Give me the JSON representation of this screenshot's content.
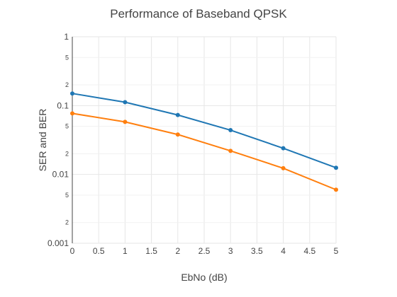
{
  "chart_data": {
    "type": "line",
    "title": "Performance of Baseband QPSK",
    "xlabel": "EbNo (dB)",
    "ylabel": "SER and BER",
    "xlim": [
      0,
      5
    ],
    "ylim": [
      0.001,
      1
    ],
    "yscale": "log",
    "grid": true,
    "x_ticks": [
      "0",
      "0.5",
      "1",
      "1.5",
      "2",
      "2.5",
      "3",
      "3.5",
      "4",
      "4.5",
      "5"
    ],
    "y_ticks": [
      "0.001",
      "0.01",
      "0.1",
      "1"
    ],
    "y_minor_ticks": [
      "2",
      "5",
      "2",
      "5",
      "2",
      "5"
    ],
    "series": [
      {
        "color": "#1f77b4",
        "x": [
          0,
          1,
          2,
          3,
          4,
          5
        ],
        "y": [
          0.15,
          0.112,
          0.073,
          0.044,
          0.024,
          0.0125
        ]
      },
      {
        "color": "#ff7f0e",
        "x": [
          0,
          1,
          2,
          3,
          4,
          5
        ],
        "y": [
          0.077,
          0.058,
          0.038,
          0.022,
          0.0123,
          0.006
        ]
      }
    ]
  }
}
